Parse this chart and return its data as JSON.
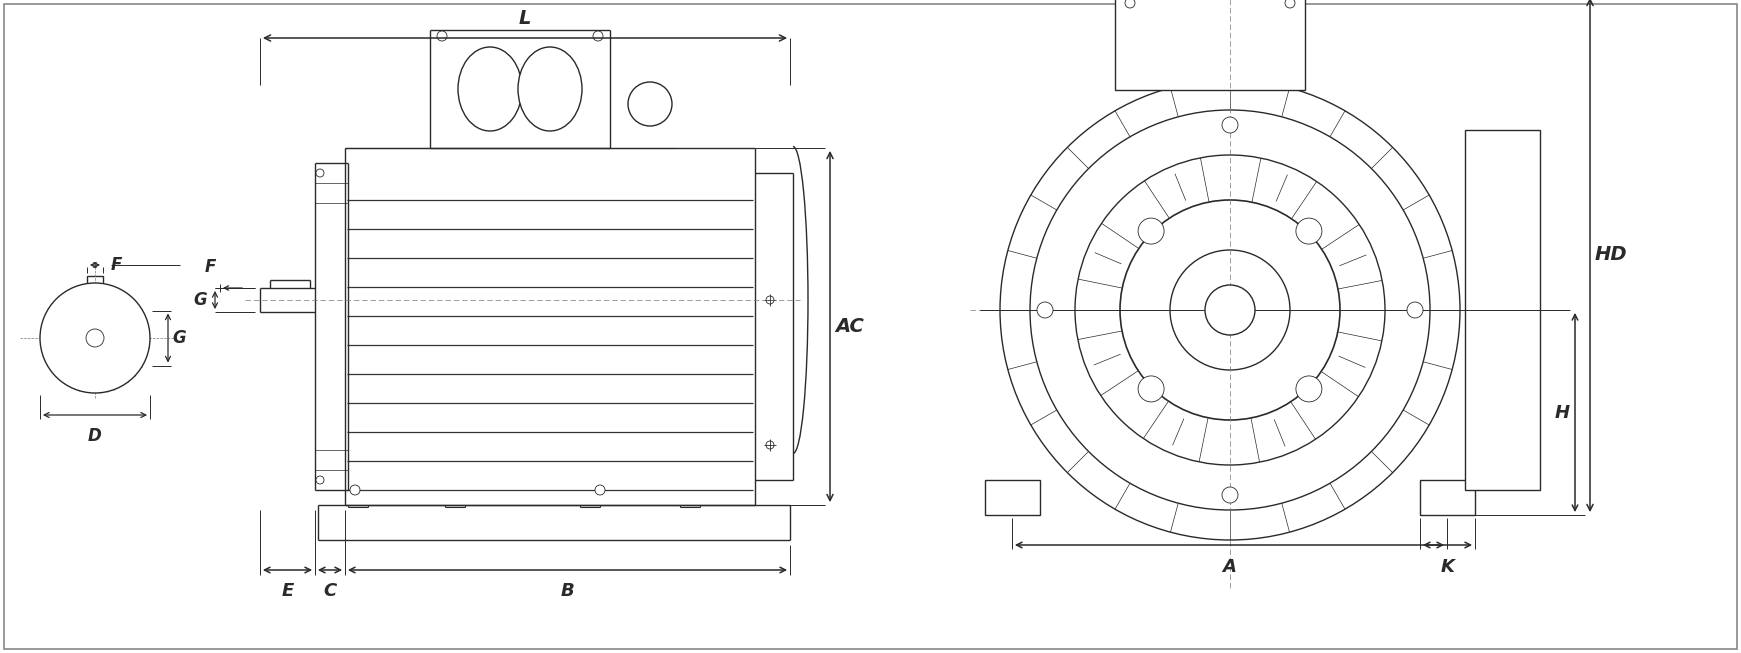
{
  "bg_color": "#ffffff",
  "lc": "#2a2a2a",
  "lw": 1.0,
  "tlw": 0.6,
  "fig_width": 17.41,
  "fig_height": 6.53,
  "dpi": 100,
  "labels": [
    "L",
    "AC",
    "B",
    "C",
    "E",
    "F",
    "G",
    "D",
    "HD",
    "H",
    "A",
    "K"
  ]
}
